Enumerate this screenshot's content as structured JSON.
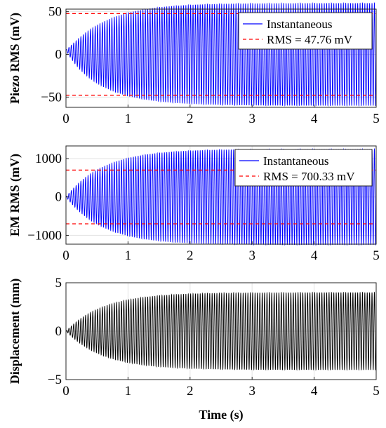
{
  "chart_data": [
    {
      "type": "line",
      "ylabel": "Piezo RMS (mV)",
      "xlabel": "",
      "xlim": [
        0,
        5
      ],
      "ylim": [
        -62,
        53
      ],
      "xticks": [
        0,
        1,
        2,
        3,
        4,
        5
      ],
      "yticks": [
        -50,
        0,
        50
      ],
      "grid": true,
      "legend_position": "top-right",
      "signal": {
        "amplitude_steady": 60,
        "rise_time_constant_s": 0.6,
        "cycles_shown": 130,
        "start_value": 5
      },
      "series": [
        {
          "name": "Instantaneous",
          "style": "solid",
          "color": "#0000ff"
        },
        {
          "name": "RMS = 47.76 mV",
          "style": "dashed",
          "color": "#ff0000",
          "value": 47.76
        }
      ]
    },
    {
      "type": "line",
      "ylabel": "EM RMS (mV)",
      "xlabel": "",
      "xlim": [
        0,
        5
      ],
      "ylim": [
        -1230,
        1330
      ],
      "xticks": [
        0,
        1,
        2,
        3,
        4,
        5
      ],
      "yticks": [
        -1000,
        0,
        1000
      ],
      "grid": true,
      "legend_position": "top-right",
      "signal": {
        "amplitude_steady": 1250,
        "rise_time_constant_s": 0.6,
        "cycles_shown": 130,
        "start_value": 0
      },
      "series": [
        {
          "name": "Instantaneous",
          "style": "solid",
          "color": "#0000ff"
        },
        {
          "name": "RMS = 700.33 mV",
          "style": "dashed",
          "color": "#ff0000",
          "value": 700.33
        }
      ]
    },
    {
      "type": "line",
      "ylabel": "Displacement (mm)",
      "xlabel": "Time (s)",
      "xlim": [
        0,
        5
      ],
      "ylim": [
        -5,
        5
      ],
      "xticks": [
        0,
        1,
        2,
        3,
        4,
        5
      ],
      "yticks": [
        -5,
        0,
        5
      ],
      "grid": true,
      "signal": {
        "amplitude_steady": 4,
        "rise_time_constant_s": 0.6,
        "cycles_shown": 130,
        "start_value": 0
      },
      "series": [
        {
          "name": "",
          "style": "solid",
          "color": "#000000"
        }
      ]
    }
  ]
}
